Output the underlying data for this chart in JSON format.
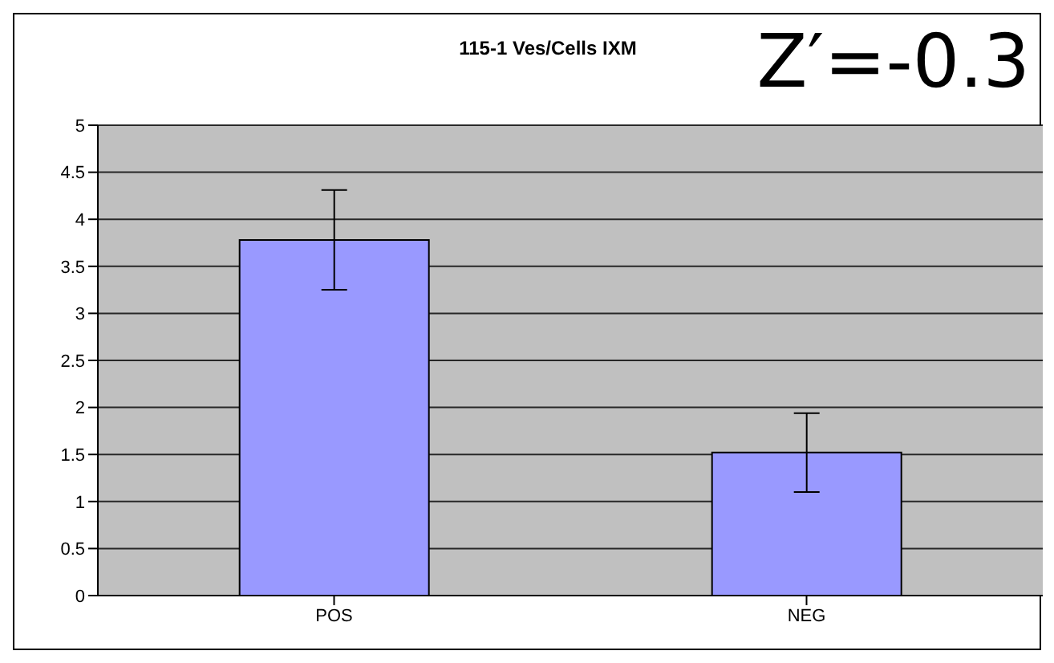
{
  "chart_data": {
    "type": "bar",
    "title": "115-1 Ves/Cells IXM",
    "annotations": [
      "Z′=-0.3"
    ],
    "categories": [
      "POS",
      "NEG"
    ],
    "values": [
      3.78,
      1.52
    ],
    "errors": [
      0.53,
      0.42
    ],
    "color": "#9999ff",
    "ylim": [
      0,
      5
    ],
    "yticks": [
      0,
      0.5,
      1,
      1.5,
      2,
      2.5,
      3,
      3.5,
      4,
      4.5,
      5
    ],
    "grid": "y"
  }
}
